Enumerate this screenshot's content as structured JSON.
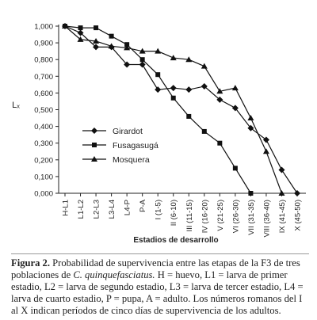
{
  "chart_data": {
    "type": "line",
    "x_label": "Estadios de desarrollo",
    "y_label": "Lₓ",
    "categories": [
      "H-L1",
      "L1-L2",
      "L2-L3",
      "L3-L4",
      "L4-P",
      "P-A",
      "I (1-5)",
      "II (6-10)",
      "III (11-15)",
      "IV (16-20)",
      "V (21-25)",
      "VI (26-30)",
      "VII (31-35)",
      "VIII (36-40)",
      "IX (41-45)",
      "X (45-50)"
    ],
    "series": [
      {
        "name": "Girardot",
        "color": "#111111",
        "marker": "diamond",
        "values": [
          1.0,
          0.96,
          0.875,
          0.875,
          0.77,
          0.77,
          0.62,
          0.63,
          0.62,
          0.64,
          0.56,
          0.51,
          0.39,
          0.32,
          0.14,
          0.0
        ]
      },
      {
        "name": "Fusagasugá",
        "color": "#111111",
        "marker": "square",
        "values": [
          1.0,
          0.99,
          0.99,
          0.94,
          0.89,
          0.8,
          0.71,
          0.57,
          0.46,
          0.37,
          0.3,
          0.15,
          0.0,
          null,
          null,
          null
        ]
      },
      {
        "name": "Mosquera",
        "color": "#111111",
        "marker": "triangle",
        "values": [
          1.0,
          0.92,
          0.91,
          0.88,
          0.87,
          0.85,
          0.85,
          0.81,
          0.8,
          0.76,
          0.61,
          0.63,
          0.45,
          0.25,
          0.0,
          null
        ]
      }
    ],
    "ylim": [
      0,
      1
    ],
    "yticks": [
      {
        "value": 0,
        "label": "0,000"
      },
      {
        "value": 0.1,
        "label": "0,100"
      },
      {
        "value": 0.2,
        "label": "0,200"
      },
      {
        "value": 0.3,
        "label": "0,300"
      },
      {
        "value": 0.4,
        "label": "0,400"
      },
      {
        "value": 0.5,
        "label": "0,500"
      },
      {
        "value": 0.6,
        "label": "0,600"
      },
      {
        "value": 0.7,
        "label": "0,700"
      },
      {
        "value": 0.8,
        "label": "0,800"
      },
      {
        "value": 0.9,
        "label": "0,900"
      },
      {
        "value": 1,
        "label": "1,000"
      }
    ],
    "legend": "lower-left"
  },
  "caption": {
    "label": "Figura 2.",
    "text_before": " Probabilidad de supervivencia entre las etapas de la F3 de tres poblaciones de ",
    "species": "C. quinquefasciatus.",
    "text_after": " H = huevo, L1 = larva de primer estadio, L2 = larva de segundo estadio, L3 = larva de tercer estadio, L4 = larva de cuarto estadio, P = pupa, A = adulto. Los números romanos del I al X indican períodos de cinco días de supervivencia de los adultos."
  }
}
